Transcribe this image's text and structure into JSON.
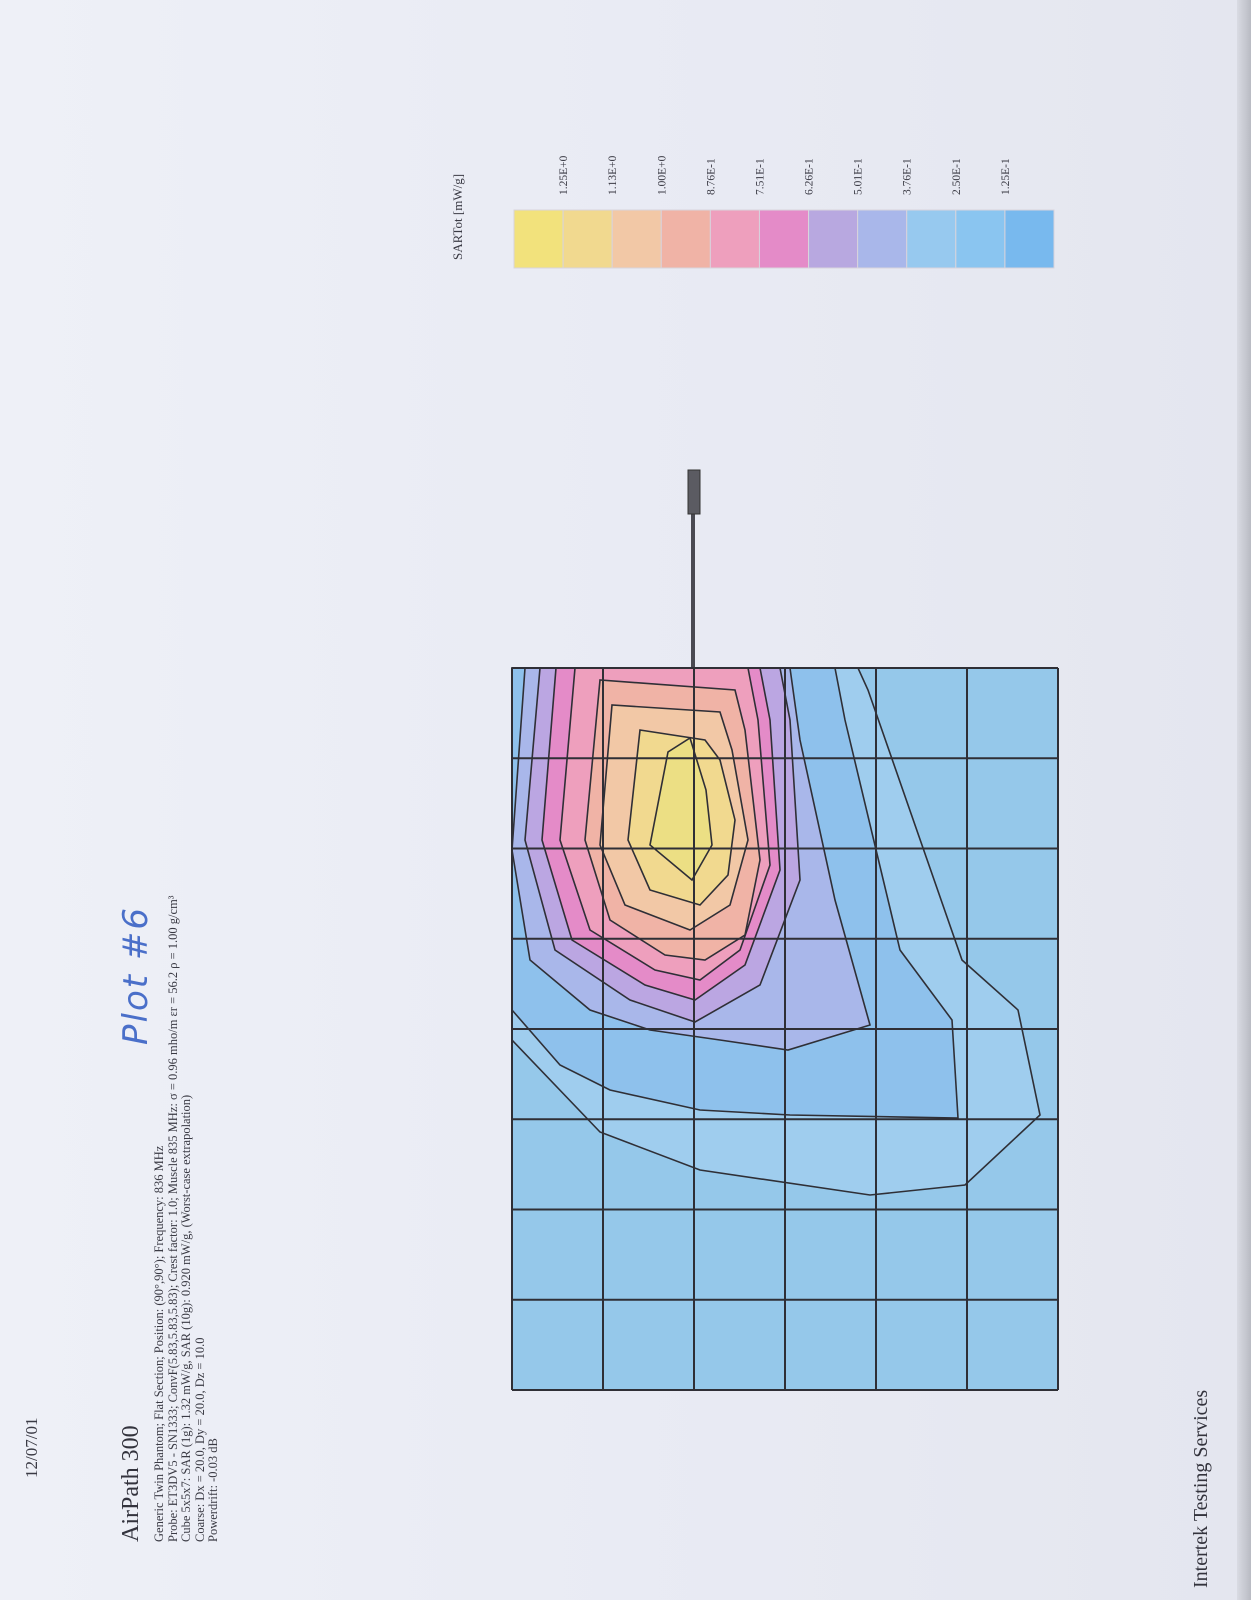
{
  "document": {
    "date": "12/07/01",
    "title": "AirPath 300",
    "handwritten_note": "Plot #6",
    "info_lines": [
      "Generic Twin Phantom; Flat Section; Position: (90°,90°); Frequency: 836 MHz",
      "Probe: ET3DV5 - SN1333; ConvF(5.83,5.83,5.83); Crest factor: 1.0; Muscle 835 MHz: σ = 0.96 mho/m εr = 56.2 ρ = 1.00 g/cm³",
      "Cube 5x5x7: SAR (1g): 1.32   mW/g, SAR (10g): 0.920  mW/g, (Worst-case extrapolation)",
      "Coarse: Dx = 20.0, Dy = 20.0, Dz = 10.0",
      "Powerdrift: -0.03 dB"
    ],
    "company": "Intertek Testing Services"
  },
  "legend": {
    "unit_label": "SARTot [mW/g]",
    "labels": [
      "1.25E+0",
      "1.13E+0",
      "1.00E+0",
      "8.76E-1",
      "7.51E-1",
      "6.26E-1",
      "5.01E-1",
      "3.76E-1",
      "2.50E-1",
      "1.25E-1"
    ],
    "colors": [
      "#f2e27c",
      "#f1d98f",
      "#f2c8a6",
      "#f0b3a6",
      "#ee9fbd",
      "#e48bc8",
      "#b8a8e0",
      "#a9b7ea",
      "#97c9ef",
      "#8ac5f0",
      "#78b9ee"
    ]
  },
  "colors": {
    "field_base": "#95c8ea",
    "grid_line": "#2f2f36",
    "peak": "#ecdf84"
  }
}
